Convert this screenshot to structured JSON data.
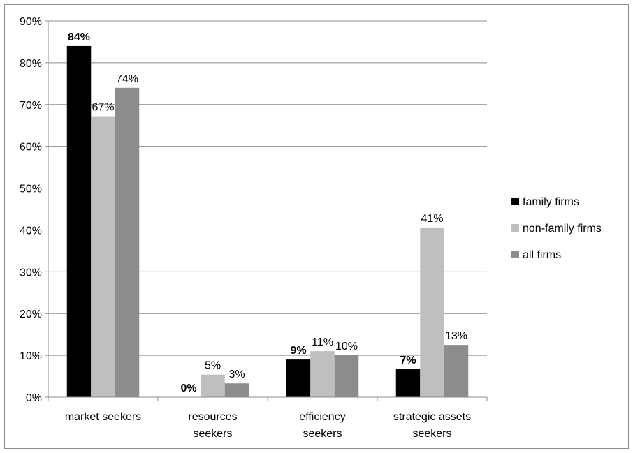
{
  "chart_data": {
    "type": "bar",
    "title": "",
    "xlabel": "",
    "ylabel": "",
    "ylim": [
      0,
      90
    ],
    "yticks": [
      "0%",
      "10%",
      "20%",
      "30%",
      "40%",
      "50%",
      "60%",
      "70%",
      "80%",
      "90%"
    ],
    "grid": true,
    "legend_position": "right",
    "categories": [
      [
        "market seekers"
      ],
      [
        "resources",
        "seekers"
      ],
      [
        "efficiency",
        "seekers"
      ],
      [
        "strategic assets",
        "seekers"
      ]
    ],
    "series": [
      {
        "name": "family firms",
        "color": "#000000",
        "values": [
          84,
          0,
          9,
          6.7
        ],
        "labels": [
          "84%",
          "0%",
          "9%",
          "7%"
        ],
        "label_bold": true
      },
      {
        "name": "non-family firms",
        "color": "#bfbfbf",
        "values": [
          67.2,
          5.4,
          11,
          40.6
        ],
        "labels": [
          "67%",
          "5%",
          "11%",
          "41%"
        ],
        "label_bold": false
      },
      {
        "name": "all firms",
        "color": "#8c8c8c",
        "values": [
          74,
          3.3,
          10,
          12.5
        ],
        "labels": [
          "74%",
          "3%",
          "10%",
          "13%"
        ],
        "label_bold": false
      }
    ]
  }
}
